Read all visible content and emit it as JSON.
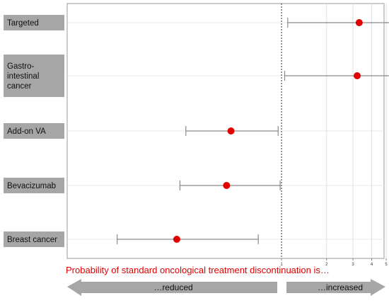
{
  "chart_data": {
    "type": "forest",
    "xscale": "log",
    "reference_line": 1,
    "xticks": [
      "1",
      "2",
      "3",
      "4",
      "5",
      "6",
      "7"
    ],
    "rows": [
      {
        "label": "Targeted",
        "estimate": 3.3,
        "ci_low": 1.1,
        "ci_high": 7.6
      },
      {
        "label": "Gastro-\nintestinal\ncancer",
        "estimate": 3.2,
        "ci_low": 1.05,
        "ci_high": 7.6
      },
      {
        "label": "Add-on VA",
        "estimate": 0.46,
        "ci_low": 0.23,
        "ci_high": 0.95
      },
      {
        "label": "Bevacizumab",
        "estimate": 0.43,
        "ci_low": 0.21,
        "ci_high": 0.98
      },
      {
        "label": "Breast cancer",
        "estimate": 0.2,
        "ci_low": 0.08,
        "ci_high": 0.7
      }
    ],
    "colors": {
      "point": "#e00000",
      "ci": "#8a8a8a",
      "label_box": "#a6a6a6",
      "arrow": "#a6a6a6",
      "caption": "#e00000"
    }
  },
  "caption": "Probability of standard oncological treatment discontinuation is…",
  "arrows": {
    "left": "…reduced",
    "right": "…increased"
  }
}
